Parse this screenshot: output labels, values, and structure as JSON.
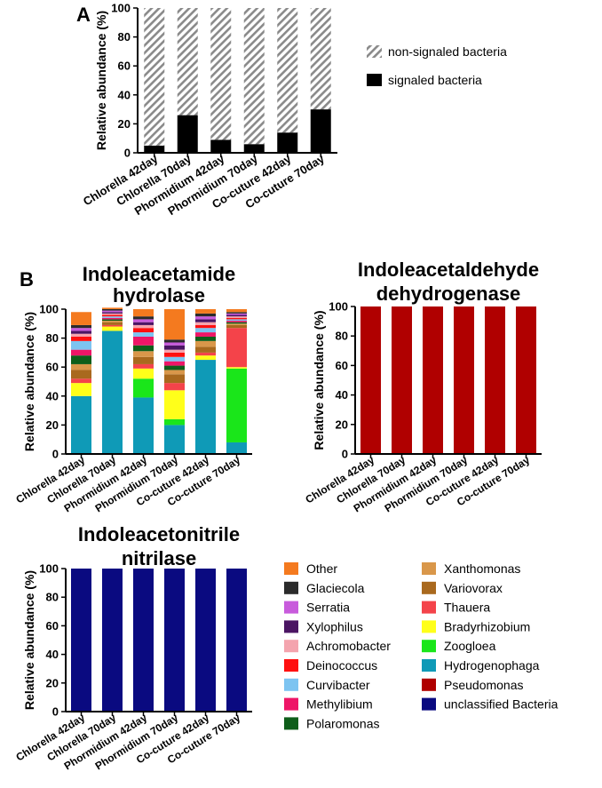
{
  "panel_labels": {
    "a": "A",
    "b": "B"
  },
  "colors": {
    "Other": "#f47a1f",
    "Glaciecola": "#2b2b2b",
    "Serratia": "#c85bdc",
    "Xylophilus": "#4b1563",
    "Achromobacter": "#f4a4ae",
    "Deinococcus": "#ff1010",
    "Curvibacter": "#7dc4f1",
    "Methylibium": "#ee1667",
    "Polaromonas": "#0e5e1a",
    "Xanthomonas": "#d9974a",
    "Variovorax": "#a9691e",
    "Thauera": "#f4434a",
    "Bradyrhizobium": "#ffff1a",
    "Zoogloea": "#1ae61a",
    "Hydrogenophaga": "#0f9ab7",
    "Pseudomonas": "#b00000",
    "unclassified Bacteria": "#0a0a80",
    "signaled": "#000000",
    "non_signaled_stripe": "#8a8a8a"
  },
  "chart_data": [
    {
      "id": "A",
      "type": "bar",
      "stacked": true,
      "title": "",
      "ylabel": "Relative abundance (%)",
      "ylim": [
        0,
        100
      ],
      "yticks": [
        0,
        20,
        40,
        60,
        80,
        100
      ],
      "categories": [
        "Chlorella 42day",
        "Chlorella 70day",
        "Phormidium 42day",
        "Phormidium 70day",
        "Co-cuture 42day",
        "Co-cuture 70day"
      ],
      "series": [
        {
          "name": "signaled bacteria",
          "values": [
            5,
            26,
            9,
            6,
            14,
            30
          ]
        },
        {
          "name": "non-signaled bacteria",
          "values": [
            95,
            74,
            91,
            94,
            86,
            70
          ]
        }
      ],
      "legend": [
        "non-signaled bacteria",
        "signaled bacteria"
      ],
      "legend_position": "right"
    },
    {
      "id": "B1",
      "type": "bar",
      "stacked": true,
      "title": "Indoleacetamide hydrolase",
      "title_lines": [
        "Indoleacetamide",
        "hydrolase"
      ],
      "ylabel": "Relative abundance (%)",
      "ylim": [
        0,
        100
      ],
      "yticks": [
        0,
        20,
        40,
        60,
        80,
        100
      ],
      "categories": [
        "Chlorella 42day",
        "Chlorella 70day",
        "Phormidium 42day",
        "Phormidium 70day",
        "Co-cuture 42day",
        "Co-cuture 70day"
      ],
      "series": [
        {
          "name": "Hydrogenophaga",
          "values": [
            40,
            85,
            39,
            20,
            65,
            8
          ]
        },
        {
          "name": "Zoogloea",
          "values": [
            0,
            0,
            13,
            4,
            0,
            51
          ]
        },
        {
          "name": "Bradyrhizobium",
          "values": [
            9,
            3,
            7,
            20,
            3,
            1
          ]
        },
        {
          "name": "Thauera",
          "values": [
            3,
            1,
            3,
            5,
            2,
            27
          ]
        },
        {
          "name": "Variovorax",
          "values": [
            6,
            2,
            5,
            6,
            4,
            2
          ]
        },
        {
          "name": "Xanthomonas",
          "values": [
            4,
            1,
            4,
            3,
            4,
            1
          ]
        },
        {
          "name": "Polaromonas",
          "values": [
            6,
            1,
            4,
            3,
            3,
            1
          ]
        },
        {
          "name": "Methylibium",
          "values": [
            4,
            1,
            6,
            3,
            3,
            1
          ]
        },
        {
          "name": "Curvibacter",
          "values": [
            6,
            1,
            3,
            3,
            3,
            1
          ]
        },
        {
          "name": "Deinococcus",
          "values": [
            3,
            1,
            3,
            3,
            2,
            1
          ]
        },
        {
          "name": "Achromobacter",
          "values": [
            2,
            1,
            2,
            2,
            2,
            1
          ]
        },
        {
          "name": "Xylophilus",
          "values": [
            2,
            1,
            2,
            3,
            2,
            1
          ]
        },
        {
          "name": "Serratia",
          "values": [
            2,
            1,
            2,
            2,
            2,
            1
          ]
        },
        {
          "name": "Glaciecola",
          "values": [
            2,
            1,
            2,
            2,
            2,
            1
          ]
        },
        {
          "name": "Other",
          "values": [
            9,
            1,
            5,
            21,
            3,
            2
          ]
        }
      ]
    },
    {
      "id": "B2",
      "type": "bar",
      "stacked": true,
      "title": "Indoleacetaldehyde dehydrogenase",
      "title_lines": [
        "Indoleacetaldehyde",
        "dehydrogenase"
      ],
      "ylabel": "Relative abundance (%)",
      "ylim": [
        0,
        100
      ],
      "yticks": [
        0,
        20,
        40,
        60,
        80,
        100
      ],
      "categories": [
        "Chlorella 42day",
        "Chlorella 70day",
        "Phormidium 42day",
        "Phormidium 70day",
        "Co-cuture 42day",
        "Co-cuture 70day"
      ],
      "series": [
        {
          "name": "Pseudomonas",
          "values": [
            100,
            100,
            100,
            100,
            100,
            100
          ]
        }
      ]
    },
    {
      "id": "B3",
      "type": "bar",
      "stacked": true,
      "title": "Indoleacetonitrile nitrilase",
      "title_lines": [
        "Indoleacetonitrile",
        "nitrilase"
      ],
      "ylabel": "Relative abundance (%)",
      "ylim": [
        0,
        100
      ],
      "yticks": [
        0,
        20,
        40,
        60,
        80,
        100
      ],
      "categories": [
        "Chlorella 42day",
        "Chlorella 70day",
        "Phormidium 42day",
        "Phormidium 70day",
        "Co-cuture 42day",
        "Co-cuture 70day"
      ],
      "series": [
        {
          "name": "unclassified Bacteria",
          "values": [
            100,
            100,
            100,
            100,
            100,
            100
          ]
        }
      ]
    }
  ],
  "legend_b": {
    "column1": [
      "Other",
      "Glaciecola",
      "Serratia",
      "Xylophilus",
      "Achromobacter",
      "Deinococcus",
      "Curvibacter",
      "Methylibium",
      "Polaromonas"
    ],
    "column2": [
      "Xanthomonas",
      "Variovorax",
      "Thauera",
      "Bradyrhizobium",
      "Zoogloea",
      "Hydrogenophaga",
      "Pseudomonas",
      "unclassified Bacteria"
    ]
  }
}
